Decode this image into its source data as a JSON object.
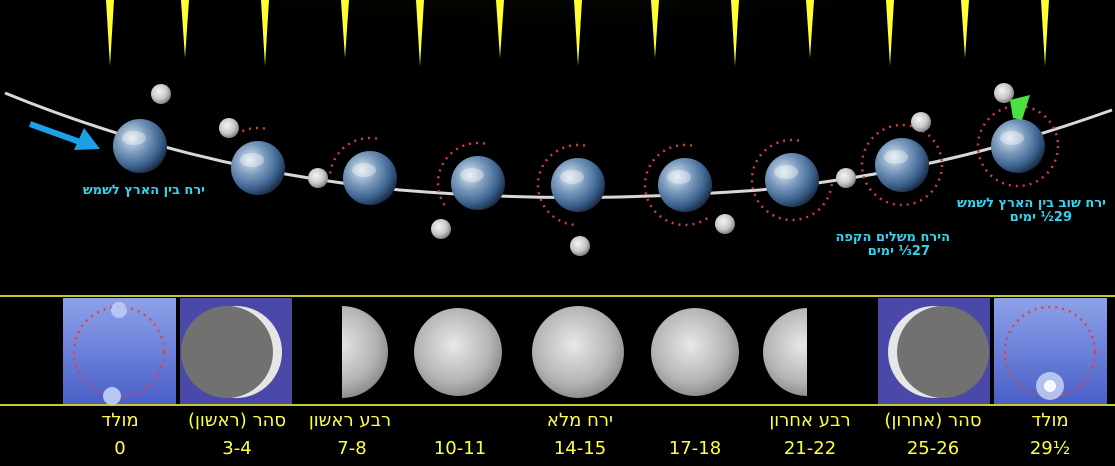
{
  "orbit_labels": {
    "new_moon": "ירח בין הארץ לשמש",
    "return_line1": "ירח שוב בין הארץ לשמש",
    "return_line2": "29½ ימים",
    "sidereal_line1": "הירח משלים הקפה",
    "sidereal_line2": "27⅓ ימים"
  },
  "phases": [
    {
      "name": "מולד",
      "days": "0"
    },
    {
      "name": "סהר (ראשון)",
      "days": "3-4"
    },
    {
      "name": "רבע ראשון",
      "days": "7-8"
    },
    {
      "name": "",
      "days": "10-11"
    },
    {
      "name": "ירח מלא",
      "days": "14-15"
    },
    {
      "name": "",
      "days": "17-18"
    },
    {
      "name": "רבע אחרון",
      "days": "21-22"
    },
    {
      "name": "סהר (אחרון)",
      "days": "25-26"
    },
    {
      "name": "מולד",
      "days": "29½"
    }
  ],
  "colors": {
    "label_cyan": "#34d3f0",
    "phase_text_yellow": "#ffff40",
    "divider_yellow": "#c8c832",
    "sun_ray_yellow": "#ffff33",
    "dotted_red": "#d23c3c",
    "arrow_blue": "#1ea0e6"
  }
}
